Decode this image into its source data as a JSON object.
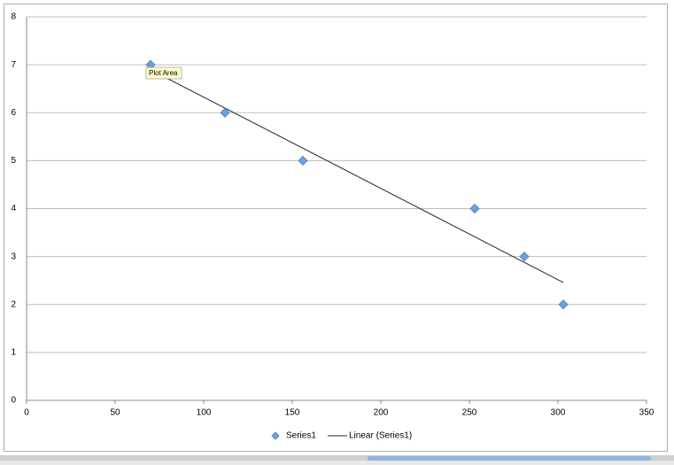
{
  "chart_data": {
    "type": "scatter",
    "series": [
      {
        "name": "Series1",
        "color": "#6fa0dc",
        "x": [
          70,
          112,
          156,
          253,
          281,
          303
        ],
        "values": [
          7,
          6,
          5,
          4,
          3,
          2
        ],
        "trendline": {
          "name": "Linear (Series1)",
          "type": "linear",
          "color": "#222222"
        }
      }
    ],
    "xlim": [
      0,
      350
    ],
    "xticks": [
      0,
      50,
      100,
      150,
      200,
      250,
      300,
      350
    ],
    "ylim": [
      0,
      8
    ],
    "yticks": [
      0,
      1,
      2,
      3,
      4,
      5,
      6,
      7,
      8
    ],
    "grid": true,
    "legend": "bottom",
    "annotation": "Plot Area"
  }
}
